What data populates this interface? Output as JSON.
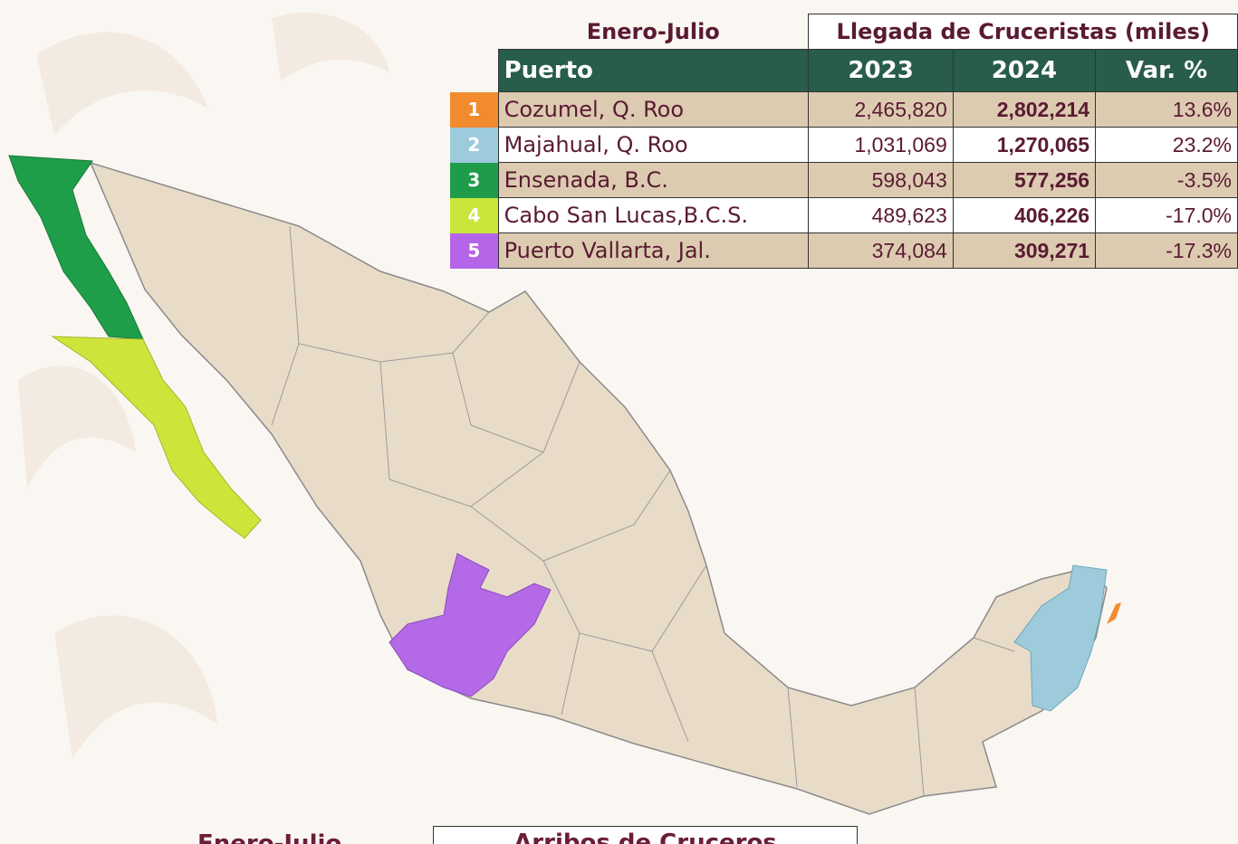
{
  "table": {
    "period": "Enero-Julio",
    "title": "Llegada de Cruceristas (miles)",
    "headers": [
      "Puerto",
      "2023",
      "2024",
      "Var. %"
    ],
    "rows": [
      [
        "1",
        "Cozumel, Q. Roo",
        "2,465,820",
        "2,802,214",
        "13.6%"
      ],
      [
        "2",
        "Majahual, Q. Roo",
        "1,031,069",
        "1,270,065",
        "23.2%"
      ],
      [
        "3",
        "Ensenada, B.C.",
        "598,043",
        "577,256",
        "-3.5%"
      ],
      [
        "4",
        "Cabo San Lucas,B.C.S.",
        "489,623",
        "406,226",
        "-17.0%"
      ],
      [
        "5",
        "Puerto Vallarta, Jal.",
        "374,084",
        "309,271",
        "-17.3%"
      ]
    ]
  },
  "bottom": {
    "period": "Enero-Julio",
    "title": "Arribos de Cruceros"
  }
}
